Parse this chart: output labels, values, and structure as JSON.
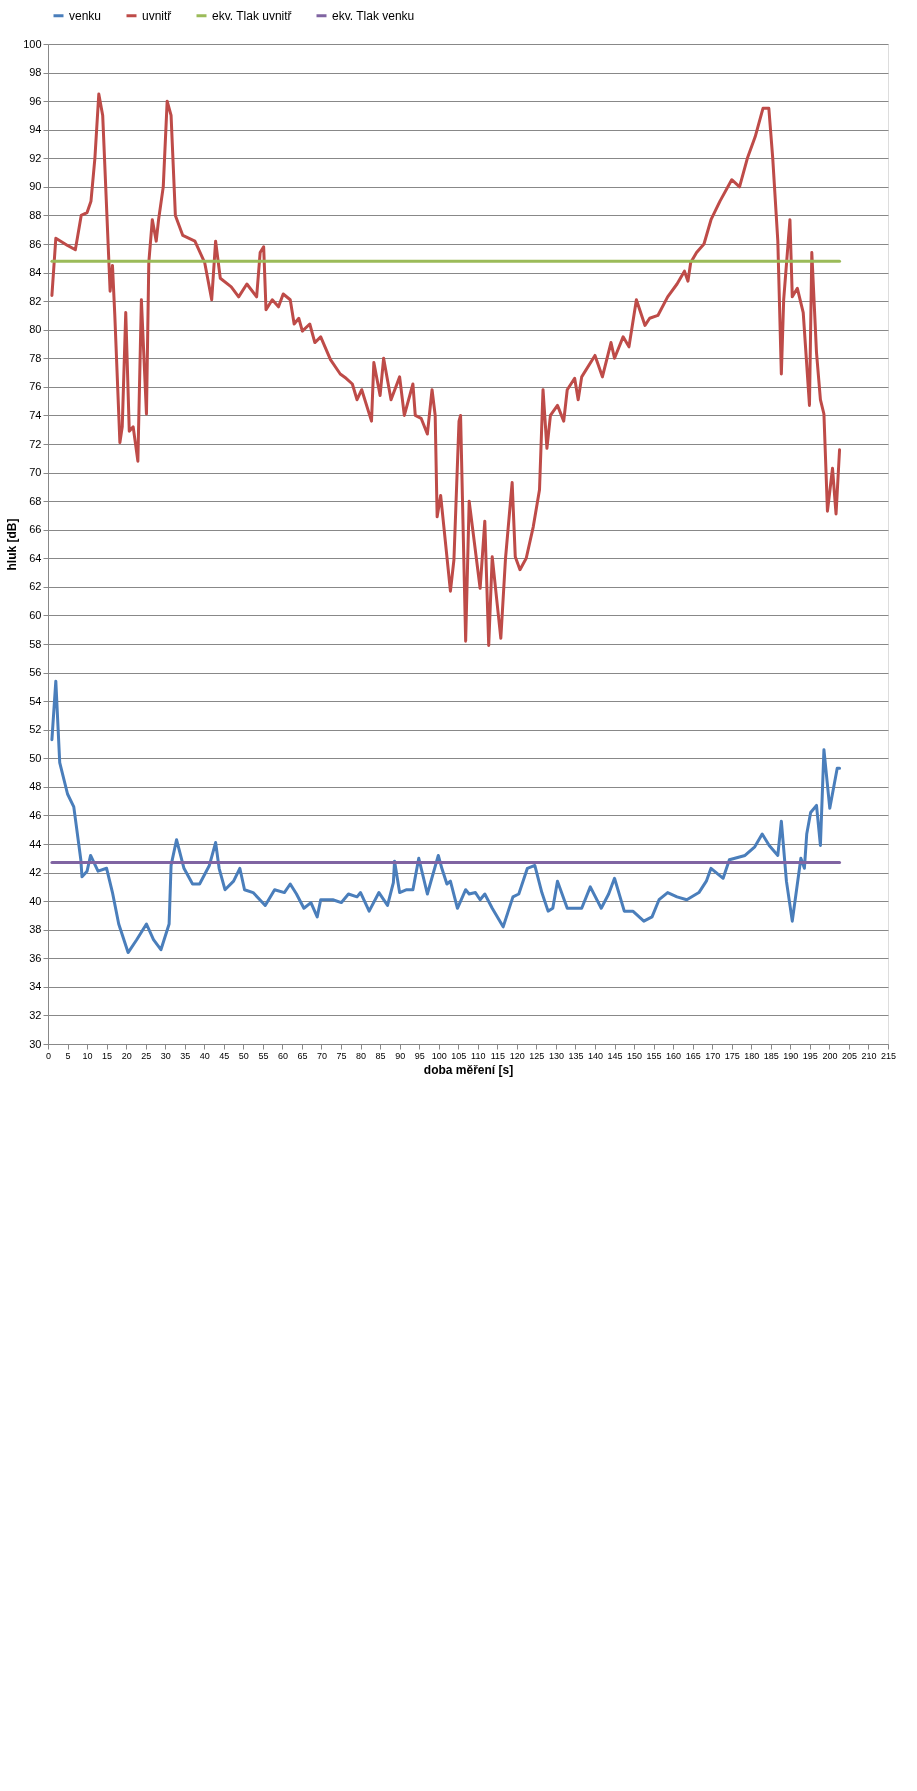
{
  "chart_data": {
    "type": "line",
    "xlabel": "doba měření [s]",
    "ylabel": "hluk [dB]",
    "xlim": [
      0,
      215
    ],
    "xticks": [
      0,
      5,
      10,
      15,
      20,
      25,
      30,
      35,
      40,
      45,
      50,
      55,
      60,
      65,
      70,
      75,
      80,
      85,
      90,
      95,
      100,
      105,
      110,
      115,
      120,
      125,
      130,
      135,
      140,
      145,
      150,
      155,
      160,
      165,
      170,
      175,
      180,
      185,
      190,
      195,
      200,
      205,
      210,
      215
    ],
    "ylim": [
      30,
      100
    ],
    "yticks": [
      30,
      32,
      34,
      36,
      38,
      40,
      42,
      44,
      46,
      48,
      50,
      52,
      54,
      56,
      58,
      60,
      62,
      64,
      66,
      68,
      70,
      72,
      74,
      76,
      78,
      80,
      82,
      84,
      86,
      88,
      90,
      92,
      94,
      96,
      98,
      100
    ],
    "grid": "y",
    "legend": "top",
    "line_style": "solid",
    "marker": "none",
    "series": [
      {
        "name": "venku",
        "color": "#4a7ebb",
        "x": [
          1,
          2,
          3,
          5,
          6.6,
          8.4,
          8.7,
          10,
          10.9,
          12.8,
          15,
          16.5,
          18.1,
          20.5,
          22.7,
          25.2,
          27,
          28.9,
          31,
          31.5,
          32.9,
          34.8,
          37,
          38.8,
          41.3,
          42.9,
          43.8,
          45.3,
          47.5,
          49.1,
          50.3,
          52.5,
          55.6,
          58,
          60.5,
          62,
          63.6,
          65.5,
          67.3,
          68.9,
          69.8,
          72.9,
          75.1,
          76.9,
          79.1,
          80,
          82.2,
          84.7,
          86.9,
          88.4,
          88.7,
          90,
          91.8,
          93.4,
          94.9,
          97.1,
          99.9,
          100.8,
          102.1,
          103,
          104.8,
          106.9,
          107.8,
          109.4,
          110.6,
          111.8,
          113.7,
          116.5,
          119,
          120.5,
          122.7,
          124.6,
          126.4,
          128,
          129.2,
          130.4,
          132.9,
          134.8,
          136.6,
          138.8,
          141.6,
          143.5,
          145,
          147.5,
          149.7,
          152.5,
          154.6,
          156.4,
          158.6,
          161,
          163.5,
          166.6,
          168.5,
          169.7,
          172.8,
          174.4,
          178.4,
          180.9,
          182.8,
          184.6,
          186.8,
          187.7,
          189,
          190.5,
          192.7,
          193.6,
          194.2,
          195.2,
          196.7,
          197.7,
          198.6,
          200.1,
          202,
          202.6
        ],
        "values": [
          51.3,
          55.4,
          49.7,
          47.5,
          46.6,
          42.9,
          41.7,
          42.1,
          43.2,
          42.1,
          42.3,
          40.6,
          38.4,
          36.4,
          37.3,
          38.4,
          37.3,
          36.6,
          38.4,
          42.5,
          44.3,
          42.3,
          41.2,
          41.2,
          42.5,
          44.1,
          42.3,
          40.8,
          41.4,
          42.3,
          40.8,
          40.6,
          39.7,
          40.8,
          40.6,
          41.2,
          40.5,
          39.5,
          39.9,
          38.9,
          40.1,
          40.1,
          39.9,
          40.5,
          40.3,
          40.6,
          39.3,
          40.6,
          39.7,
          41.3,
          42.8,
          40.6,
          40.8,
          40.8,
          43,
          40.5,
          43.2,
          42.3,
          41.2,
          41.4,
          39.5,
          40.8,
          40.5,
          40.6,
          40.1,
          40.5,
          39.5,
          38.2,
          40.3,
          40.5,
          42.3,
          42.5,
          40.6,
          39.3,
          39.5,
          41.4,
          39.5,
          39.5,
          39.5,
          41,
          39.5,
          40.5,
          41.6,
          39.3,
          39.3,
          38.6,
          38.9,
          40.1,
          40.6,
          40.3,
          40.1,
          40.6,
          41.4,
          42.3,
          41.6,
          42.9,
          43.2,
          43.8,
          44.7,
          43.9,
          43.2,
          45.6,
          41.4,
          38.6,
          43,
          42.3,
          44.7,
          46.2,
          46.7,
          43.9,
          50.6,
          46.5,
          49.3,
          49.3
        ]
      },
      {
        "name": "uvnitř",
        "color": "#be4b48",
        "x": [
          1,
          2,
          5,
          7,
          8.5,
          10,
          11,
          12,
          13,
          14,
          15.9,
          16.5,
          17.1,
          18.4,
          19,
          19.9,
          20.8,
          21.8,
          23,
          23.9,
          25.2,
          25.8,
          26.7,
          27.7,
          28.3,
          29.5,
          30.5,
          31.5,
          32.6,
          34.5,
          37.6,
          40.1,
          41.9,
          42.9,
          44.1,
          46.9,
          48.8,
          50.9,
          53.4,
          54.3,
          55.2,
          55.8,
          57.4,
          59,
          60.2,
          62,
          63,
          64.2,
          65.1,
          67,
          68.3,
          69.8,
          72.3,
          74.8,
          76.3,
          77.9,
          79.1,
          80.3,
          82.8,
          83.4,
          85,
          85.9,
          87.8,
          90,
          91.2,
          93.4,
          94,
          95.5,
          97.1,
          98.3,
          99.1,
          99.6,
          100.5,
          103,
          103.9,
          105.2,
          105.6,
          106.9,
          107.8,
          110.6,
          111.8,
          112.8,
          113.7,
          115.9,
          117.1,
          118.8,
          119.6,
          120.8,
          122.4,
          124.2,
          125.8,
          126.7,
          127.7,
          128.6,
          130.4,
          132,
          132.9,
          134.8,
          135.7,
          136.6,
          140,
          141.9,
          144.1,
          145,
          147.2,
          148.7,
          150.6,
          152.8,
          154,
          156.1,
          158.6,
          161,
          162.9,
          163.8,
          164.5,
          166,
          167.9,
          169.7,
          172,
          175,
          177,
          179,
          181,
          183,
          184.5,
          185.5,
          186.8,
          187.7,
          188.3,
          189.9,
          190.5,
          191.8,
          193.3,
          194.9,
          195.5,
          196.7,
          197.7,
          198.6,
          199.5,
          200.8,
          201.7,
          202.6
        ],
        "values": [
          82.4,
          86.4,
          85.9,
          85.6,
          88,
          88.2,
          89,
          92,
          96.5,
          95,
          82.7,
          84.5,
          81,
          72.1,
          73.2,
          81.2,
          72.9,
          73.2,
          70.8,
          82.1,
          74.1,
          84.7,
          87.7,
          86.2,
          87.7,
          90,
          96,
          95,
          88,
          86.6,
          86.2,
          84.7,
          82.1,
          86.2,
          83.6,
          83,
          82.3,
          83.2,
          82.3,
          85.4,
          85.8,
          81.4,
          82.1,
          81.6,
          82.5,
          82.1,
          80.4,
          80.8,
          79.9,
          80.4,
          79.1,
          79.5,
          77.9,
          76.9,
          76.6,
          76.2,
          75.1,
          75.8,
          73.6,
          77.7,
          75.4,
          78,
          75.1,
          76.7,
          74,
          76.2,
          74,
          73.8,
          72.7,
          75.8,
          74,
          66.9,
          68.4,
          61.7,
          63.9,
          73.6,
          74,
          58.2,
          68,
          61.9,
          66.6,
          57.9,
          64.1,
          58.4,
          64,
          69.3,
          64.1,
          63.2,
          64,
          66.2,
          68.8,
          75.8,
          71.7,
          74,
          74.7,
          73.6,
          75.8,
          76.6,
          75.1,
          76.7,
          78.2,
          76.7,
          79.1,
          78,
          79.5,
          78.8,
          82.1,
          80.3,
          80.8,
          81,
          82.3,
          83.2,
          84.1,
          83.4,
          84.7,
          85.4,
          86,
          87.7,
          89,
          90.5,
          90,
          92,
          93.5,
          95.5,
          95.5,
          92,
          86.2,
          76.9,
          82.1,
          87.7,
          82.3,
          82.9,
          81.2,
          74.7,
          85.4,
          78.4,
          75.1,
          74.1,
          67.3,
          70.3,
          67.1,
          71.6
        ]
      },
      {
        "name": "ekv. Tlak uvnitř",
        "color": "#9bbb59",
        "x": [
          1,
          202.6
        ],
        "values": [
          84.8,
          84.8
        ]
      },
      {
        "name": "ekv. Tlak venku",
        "color": "#8064a2",
        "x": [
          1,
          202.6
        ],
        "values": [
          42.7,
          42.7
        ]
      }
    ]
  }
}
